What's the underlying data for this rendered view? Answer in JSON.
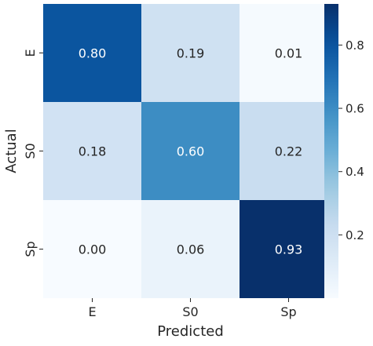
{
  "chart_data": {
    "type": "heatmap",
    "x_categories": [
      "E",
      "S0",
      "Sp"
    ],
    "y_categories": [
      "E",
      "S0",
      "Sp"
    ],
    "values": [
      [
        0.8,
        0.19,
        0.01
      ],
      [
        0.18,
        0.6,
        0.22
      ],
      [
        0.0,
        0.06,
        0.93
      ]
    ],
    "cell_labels": [
      [
        "0.80",
        "0.19",
        "0.01"
      ],
      [
        "0.18",
        "0.60",
        "0.22"
      ],
      [
        "0.00",
        "0.06",
        "0.93"
      ]
    ],
    "xlabel": "Predicted",
    "ylabel": "Actual",
    "colormap": "Blues",
    "vmin": 0.0,
    "vmax": 0.93,
    "colorbar": {
      "ticks": [
        0.2,
        0.4,
        0.6,
        0.8
      ],
      "tick_labels": [
        "0.2",
        "0.4",
        "0.6",
        "0.8"
      ]
    }
  }
}
